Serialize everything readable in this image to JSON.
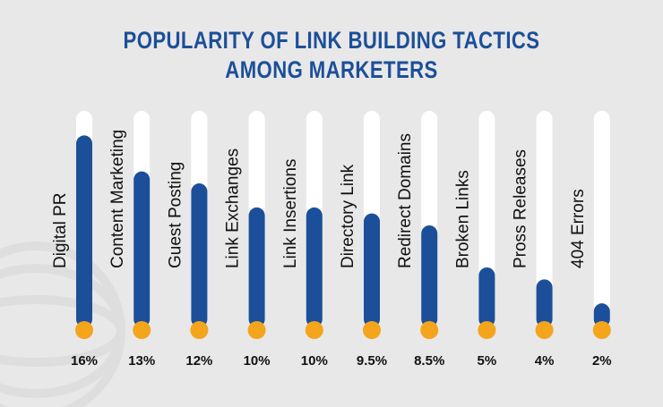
{
  "title_line1": "POPULARITY OF LINK BUILDING TACTICS",
  "title_line2": "AMONG MARKETERS",
  "colors": {
    "background": "#e8e8e8",
    "title": "#1c4f99",
    "bar_fill": "#1c4f99",
    "track": "#ffffff",
    "bulb": "#f4a51c",
    "label": "#111111"
  },
  "chart_data": {
    "type": "bar",
    "title": "POPULARITY OF LINK BUILDING TACTICS AMONG MARKETERS",
    "categories": [
      "Digital PR",
      "Content Marketing",
      "Guest Posting",
      "Link Exchanges",
      "Link Insertions",
      "Directory Link",
      "Redirect Domains",
      "Broken Links",
      "Pross Releases",
      "404 Errors"
    ],
    "values": [
      16,
      13,
      12,
      10,
      10,
      9.5,
      8.5,
      5,
      4,
      2
    ],
    "value_labels": [
      "16%",
      "13%",
      "12%",
      "10%",
      "10%",
      "9.5%",
      "8.5%",
      "5%",
      "4%",
      "2%"
    ],
    "ylim": [
      0,
      17
    ],
    "grid": false,
    "legend": "none"
  }
}
